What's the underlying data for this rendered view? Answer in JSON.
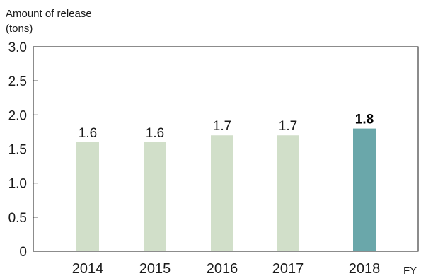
{
  "chart_data": {
    "type": "bar",
    "ylabel_line1": "Amount of release",
    "ylabel_line2": "(tons)",
    "xunit": "FY",
    "categories": [
      "2014",
      "2015",
      "2016",
      "2017",
      "2018"
    ],
    "values": [
      1.6,
      1.6,
      1.7,
      1.7,
      1.8
    ],
    "data_labels": [
      "1.6",
      "1.6",
      "1.7",
      "1.7",
      "1.8"
    ],
    "highlight_index": 4,
    "yticks": [
      "0",
      "0.5",
      "1.0",
      "1.5",
      "2.0",
      "2.5",
      "3.0"
    ],
    "ylim": [
      0,
      3.0
    ],
    "grid": false,
    "colors": {
      "bar": "#d1dfc9",
      "highlight": "#6aa7aa",
      "axis": "#1a1a1a"
    }
  }
}
